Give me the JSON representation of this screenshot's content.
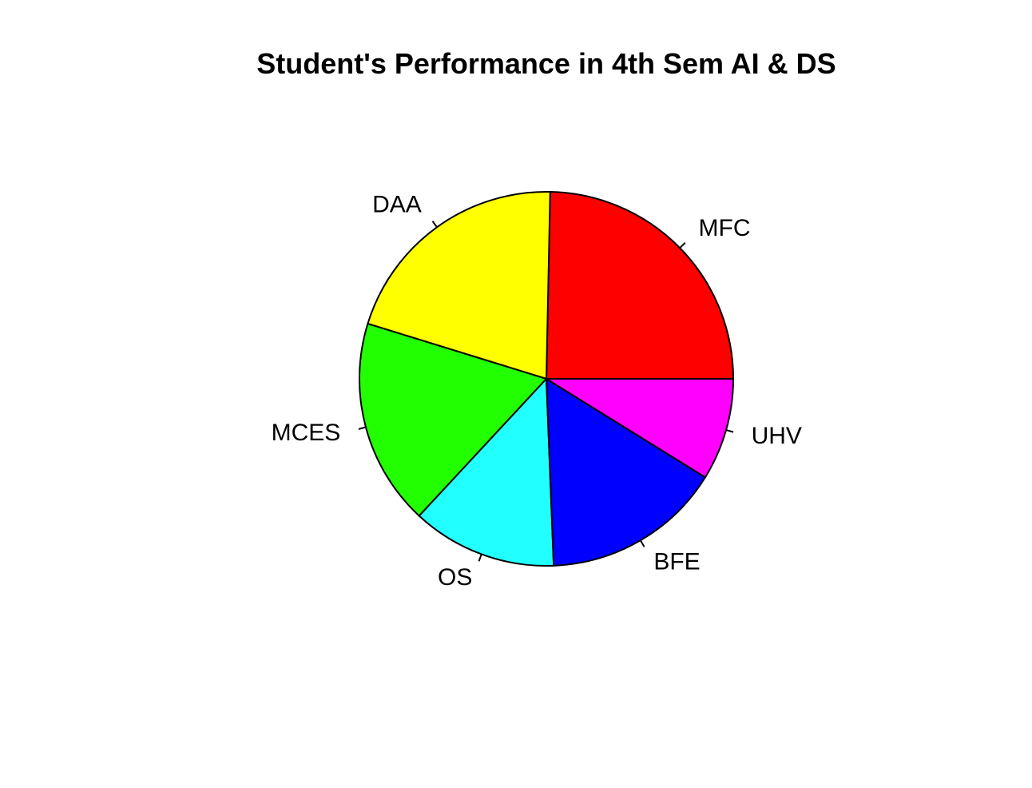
{
  "chart_data": {
    "type": "pie",
    "title": "Student's Performance in 4th Sem AI & DS",
    "clockwise": false,
    "start": "3-o'clock",
    "slices": [
      {
        "label": "MFC",
        "value": 24.6,
        "color": "#FF0000"
      },
      {
        "label": "DAA",
        "value": 20.5,
        "color": "#FFFF00"
      },
      {
        "label": "MCES",
        "value": 17.8,
        "color": "#22FF00"
      },
      {
        "label": "OS",
        "value": 12.5,
        "color": "#22FFFF"
      },
      {
        "label": "BFE",
        "value": 15.5,
        "color": "#0000FF"
      },
      {
        "label": "UHV",
        "value": 8.8,
        "color": "#FF00FF"
      }
    ]
  }
}
